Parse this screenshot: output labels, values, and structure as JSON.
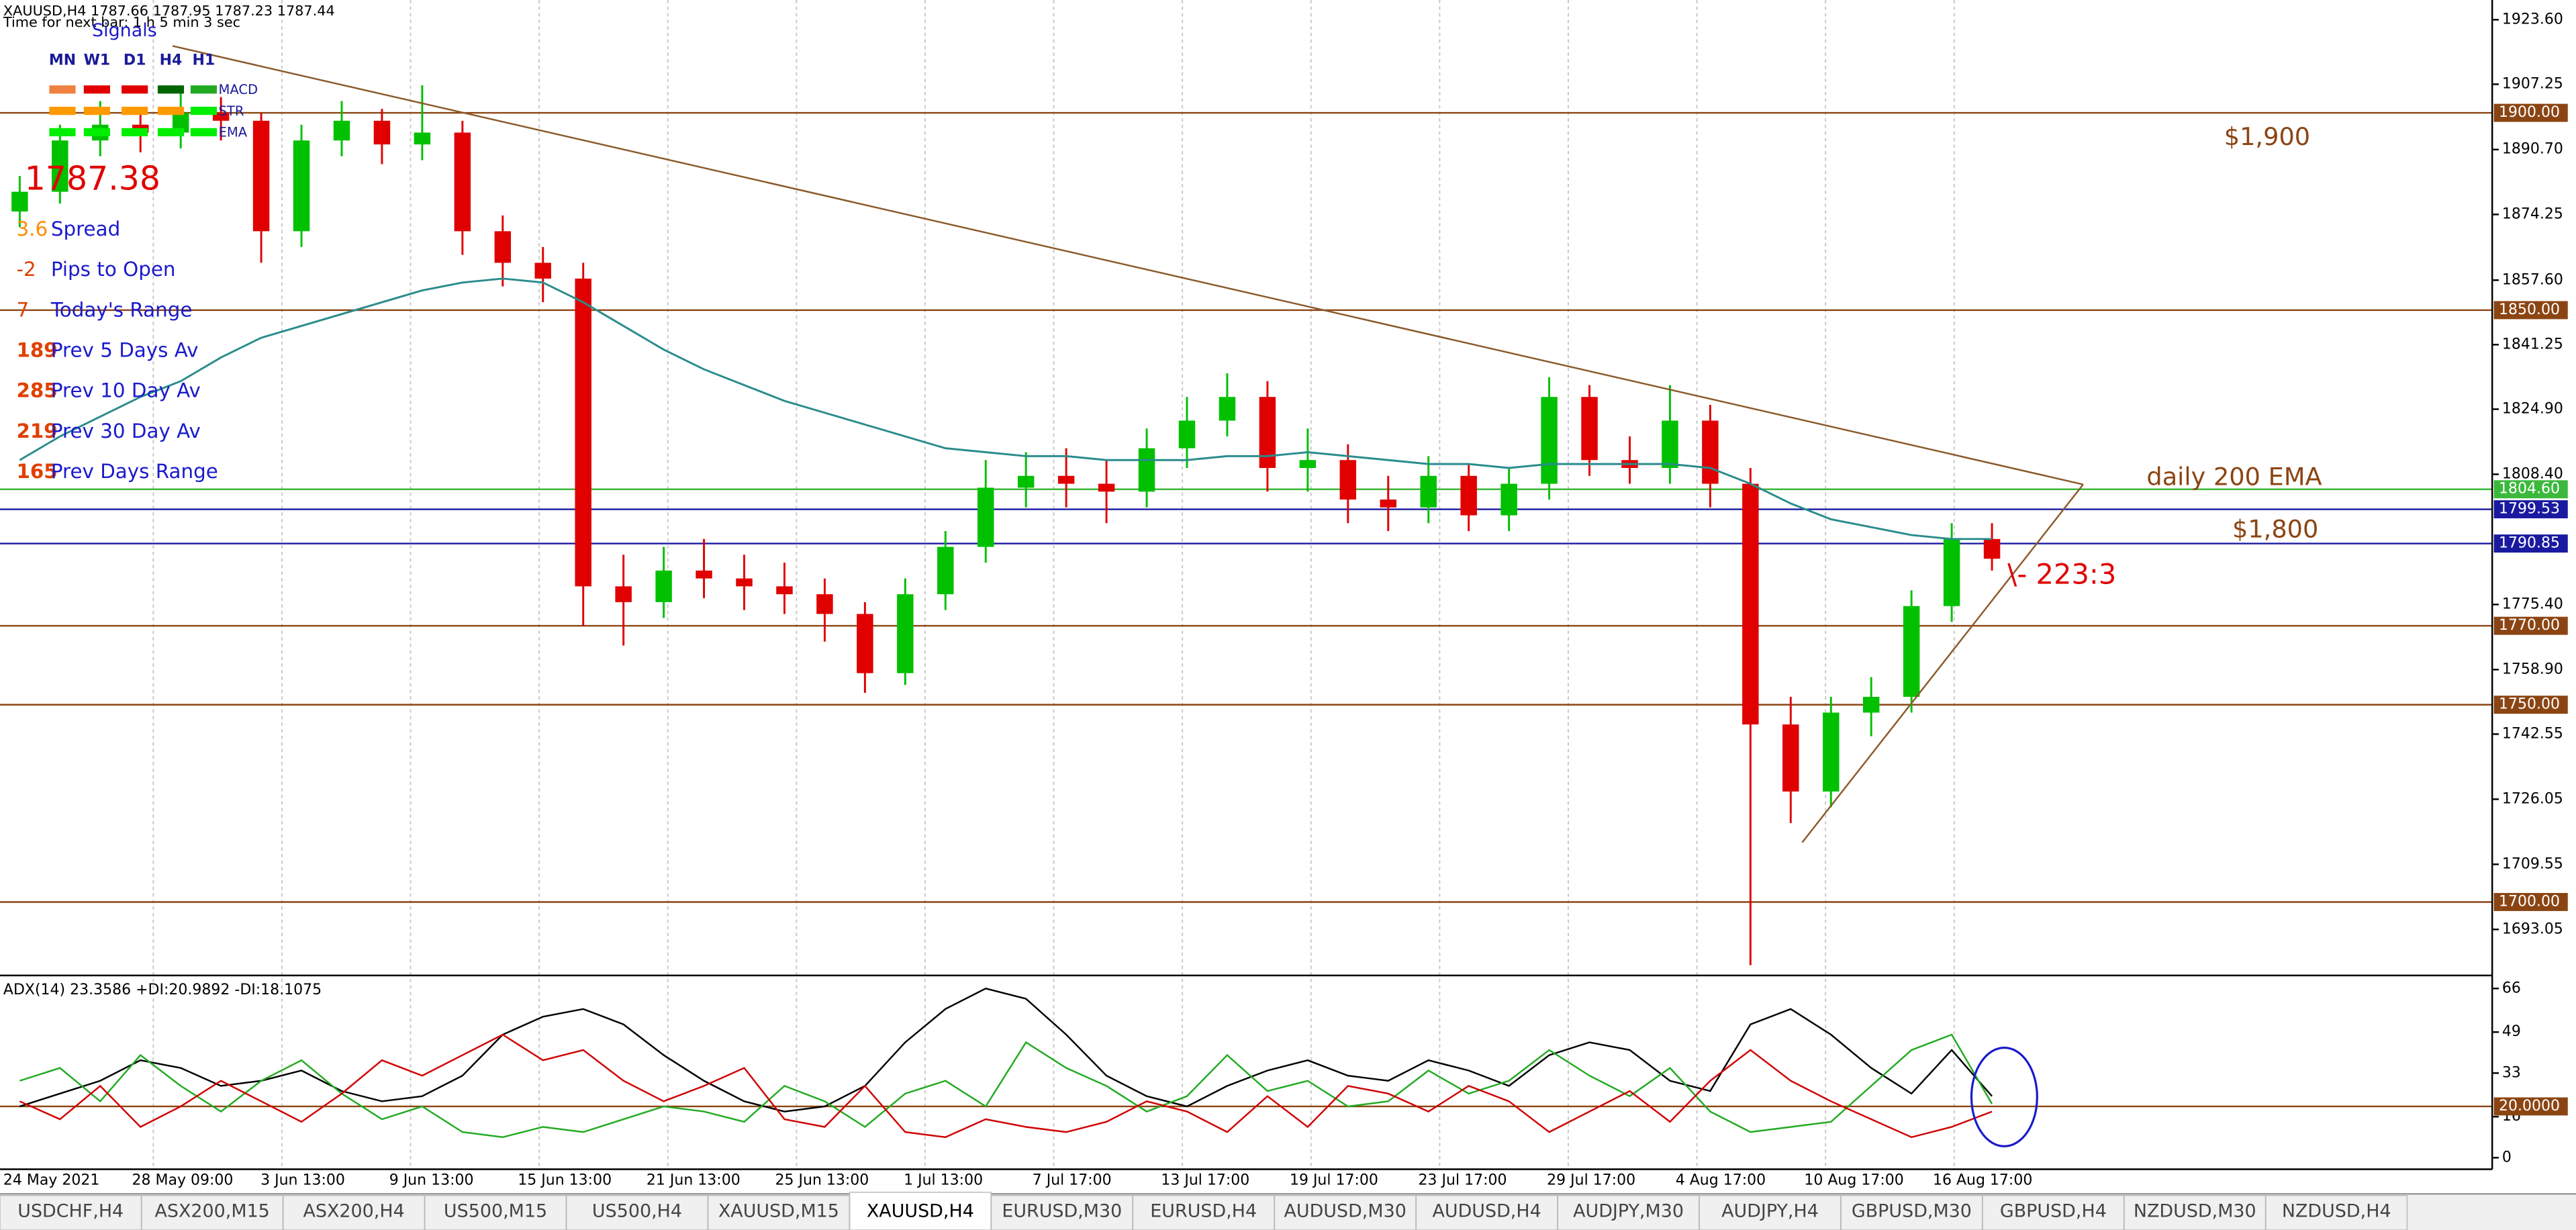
{
  "header": {
    "title": "XAUUSD,H4  1787.66 1787.95 1787.23 1787.44",
    "timer": "Time for next bar: 1 h 5 min 3 sec"
  },
  "signals": {
    "title": "Signals",
    "columns": [
      "MN",
      "W1",
      "D1",
      "H4",
      "H1"
    ],
    "rows": [
      "MACD",
      "STR",
      "EMA"
    ]
  },
  "price": 1787.38,
  "stats": [
    {
      "value": 3.6,
      "label": "Spread"
    },
    {
      "value": -2,
      "label": "Pips to Open"
    },
    {
      "value": 7,
      "label": "Today's Range"
    },
    {
      "value": 189,
      "label": "Prev 5 Days Av"
    },
    {
      "value": 285,
      "label": "Prev 10 Day Av"
    },
    {
      "value": 219,
      "label": "Prev 30 Day Av"
    },
    {
      "value": 165,
      "label": "Prev Days Range"
    }
  ],
  "tabs": [
    "USDCHF,H4",
    "ASX200,M15",
    "ASX200,H4",
    "US500,M15",
    "US500,H4",
    "XAUUSD,M15",
    "XAUUSD,H4",
    "EURUSD,M30",
    "EURUSD,H4",
    "AUDUSD,M30",
    "AUDUSD,H4",
    "AUDJPY,M30",
    "AUDJPY,H4",
    "GBPUSD,M30",
    "GBPUSD,H4",
    "NZDUSD,M30",
    "NZDUSD,H4"
  ],
  "active_tab": 6,
  "chart_data": {
    "type": "candlestick",
    "up_color": "#00c000",
    "down_color": "#e00000",
    "x_labels": [
      "24 May 2021",
      "28 May 09:00",
      "3 Jun 13:00",
      "9 Jun 13:00",
      "15 Jun 13:00",
      "21 Jun 13:00",
      "25 Jun 13:00",
      "1 Jul 13:00",
      "7 Jul 17:00",
      "13 Jul 17:00",
      "19 Jul 17:00",
      "23 Jul 17:00",
      "29 Jul 17:00",
      "4 Aug 17:00",
      "10 Aug 17:00",
      "16 Aug 17:00"
    ],
    "open": [
      1875,
      1880,
      1893,
      1897,
      1895,
      1900,
      1898,
      1870,
      1893,
      1898,
      1892,
      1895,
      1870,
      1862,
      1858,
      1780,
      1776,
      1784,
      1782,
      1780,
      1778,
      1773,
      1758,
      1778,
      1790,
      1805,
      1808,
      1806,
      1804,
      1815,
      1822,
      1828,
      1810,
      1812,
      1802,
      1800,
      1808,
      1798,
      1806,
      1828,
      1812,
      1810,
      1822,
      1806,
      1745,
      1728,
      1748,
      1752,
      1775,
      1792
    ],
    "high": [
      1884,
      1897,
      1903,
      1901,
      1905,
      1904,
      1900,
      1897,
      1903,
      1901,
      1907,
      1898,
      1874,
      1866,
      1862,
      1788,
      1790,
      1792,
      1788,
      1786,
      1782,
      1776,
      1782,
      1794,
      1812,
      1814,
      1815,
      1812,
      1820,
      1828,
      1834,
      1832,
      1820,
      1816,
      1808,
      1813,
      1811,
      1810,
      1833,
      1831,
      1818,
      1831,
      1826,
      1810,
      1752,
      1752,
      1757,
      1779,
      1796,
      1796
    ],
    "low": [
      1871,
      1877,
      1889,
      1890,
      1891,
      1893,
      1862,
      1866,
      1889,
      1887,
      1888,
      1864,
      1856,
      1852,
      1770,
      1765,
      1772,
      1777,
      1774,
      1773,
      1766,
      1753,
      1755,
      1774,
      1786,
      1800,
      1800,
      1796,
      1800,
      1810,
      1818,
      1804,
      1804,
      1796,
      1794,
      1796,
      1794,
      1794,
      1802,
      1808,
      1806,
      1806,
      1800,
      1684,
      1720,
      1724,
      1742,
      1748,
      1771,
      1784
    ],
    "close": [
      1880,
      1893,
      1897,
      1895,
      1900,
      1898,
      1870,
      1893,
      1898,
      1892,
      1895,
      1870,
      1862,
      1858,
      1780,
      1776,
      1784,
      1782,
      1780,
      1778,
      1773,
      1758,
      1778,
      1790,
      1805,
      1808,
      1806,
      1804,
      1815,
      1822,
      1828,
      1810,
      1812,
      1802,
      1800,
      1808,
      1798,
      1806,
      1828,
      1812,
      1810,
      1822,
      1806,
      1745,
      1728,
      1748,
      1752,
      1775,
      1792,
      1787
    ],
    "ema": {
      "color": "#2a8c8c",
      "values": [
        1812,
        1818,
        1823,
        1828,
        1832,
        1838,
        1843,
        1846,
        1849,
        1852,
        1855,
        1857,
        1858,
        1857,
        1852,
        1846,
        1840,
        1835,
        1831,
        1827,
        1824,
        1821,
        1818,
        1815,
        1814,
        1813,
        1813,
        1812,
        1812,
        1812,
        1813,
        1813,
        1814,
        1813,
        1812,
        1811,
        1811,
        1810,
        1811,
        1811,
        1811,
        1811,
        1810,
        1806,
        1801,
        1797,
        1795,
        1793,
        1792,
        1792
      ]
    },
    "ylim": [
      1681.8,
      1928.6
    ],
    "yticks": [
      {
        "value": 1923.6,
        "label": "1923.60"
      },
      {
        "value": 1907.25,
        "label": "1907.25"
      },
      {
        "value": 1890.7,
        "label": "1890.70"
      },
      {
        "value": 1874.25,
        "label": "1874.25"
      },
      {
        "value": 1857.6,
        "label": "1857.60"
      },
      {
        "value": 1841.25,
        "label": "1841.25"
      },
      {
        "value": 1824.9,
        "label": "1824.90"
      },
      {
        "value": 1808.4,
        "label": "1808.40"
      },
      {
        "value": 1775.4,
        "label": "1775.40"
      },
      {
        "value": 1758.9,
        "label": "1758.90"
      },
      {
        "value": 1742.55,
        "label": "1742.55"
      },
      {
        "value": 1726.05,
        "label": "1726.05"
      },
      {
        "value": 1709.55,
        "label": "1709.55"
      },
      {
        "value": 1693.05,
        "label": "1693.05"
      }
    ],
    "levels": [
      {
        "value": 1900,
        "label": "1900.00",
        "color": "#8b4513"
      },
      {
        "value": 1850,
        "label": "1850.00",
        "color": "#8b4513"
      },
      {
        "value": 1804.6,
        "label": "1804.60",
        "color": "#3cb83c"
      },
      {
        "value": 1799.53,
        "label": "1799.53",
        "color": "#1a1aa0"
      },
      {
        "value": 1790.85,
        "label": "1790.85",
        "color": "#1a1aa0"
      },
      {
        "value": 1770,
        "label": "1770.00",
        "color": "#8b4513"
      },
      {
        "value": 1750,
        "label": "1750.00",
        "color": "#8b4513"
      },
      {
        "value": 1700,
        "label": "1700.00",
        "color": "#8b4513"
      }
    ],
    "annotations": [
      {
        "text": "$1,900",
        "color": "#8b4513"
      },
      {
        "text": "daily 200 EMA",
        "color": "#8b4513"
      },
      {
        "text": "$1,800",
        "color": "#8b4513"
      },
      {
        "text": "\\- 223:3",
        "color": "#e00000"
      }
    ],
    "adx": {
      "title": "ADX(14) 23.3586 +DI:20.9892 -DI:18.1075",
      "ylim": [
        -4.5,
        69.8
      ],
      "yticks": [
        0,
        16,
        33,
        49,
        66
      ],
      "level": {
        "value": 20,
        "label": "20.0000",
        "color": "#8b4513"
      },
      "series": [
        {
          "color": "#000000",
          "values": [
            20,
            25,
            30,
            38,
            35,
            28,
            30,
            34,
            26,
            22,
            24,
            32,
            48,
            55,
            58,
            52,
            40,
            30,
            22,
            18,
            20,
            28,
            45,
            58,
            66,
            62,
            48,
            32,
            24,
            20,
            28,
            34,
            38,
            32,
            30,
            38,
            34,
            28,
            40,
            45,
            42,
            30,
            26,
            52,
            58,
            48,
            35,
            25,
            42,
            24
          ]
        },
        {
          "color": "#22aa22",
          "values": [
            30,
            35,
            22,
            40,
            28,
            18,
            30,
            38,
            25,
            15,
            20,
            10,
            8,
            12,
            10,
            15,
            20,
            18,
            14,
            28,
            22,
            12,
            25,
            30,
            20,
            45,
            35,
            28,
            18,
            24,
            40,
            26,
            30,
            20,
            22,
            34,
            25,
            30,
            42,
            32,
            24,
            35,
            18,
            10,
            12,
            14,
            28,
            42,
            48,
            21
          ]
        },
        {
          "color": "#d00000",
          "values": [
            22,
            15,
            28,
            12,
            20,
            30,
            22,
            14,
            25,
            38,
            32,
            40,
            48,
            38,
            42,
            30,
            22,
            28,
            35,
            15,
            12,
            28,
            10,
            8,
            15,
            12,
            10,
            14,
            22,
            18,
            10,
            24,
            12,
            28,
            25,
            18,
            28,
            22,
            10,
            18,
            26,
            14,
            30,
            42,
            30,
            22,
            15,
            8,
            12,
            18
          ]
        }
      ]
    }
  }
}
